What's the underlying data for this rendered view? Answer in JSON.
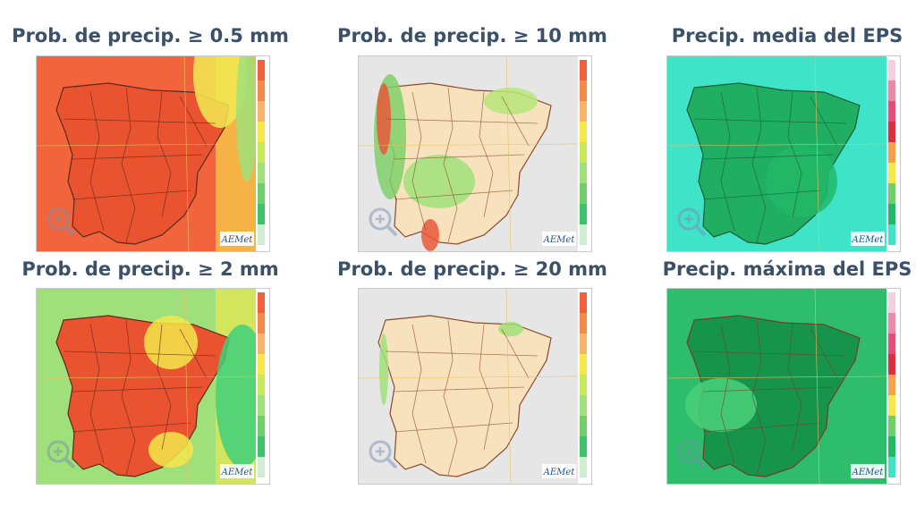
{
  "panels": [
    {
      "title": "Prob. de precip.  ≥ 0.5 mm",
      "logo": "AEMet"
    },
    {
      "title": "Prob. de precip.  ≥ 10 mm",
      "logo": "AEMet"
    },
    {
      "title": "Precip. media del EPS",
      "logo": "AEMet"
    },
    {
      "title": "Prob. de precip.  ≥ 2 mm",
      "logo": "AEMet"
    },
    {
      "title": "Prob. de precip.  ≥ 20 mm",
      "logo": "AEMet"
    },
    {
      "title": "Precip. máxima del EPS",
      "logo": "AEMet"
    }
  ]
}
